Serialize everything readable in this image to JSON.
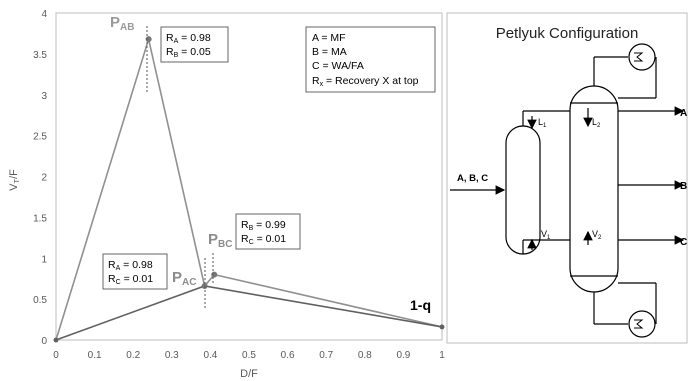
{
  "chart_data": {
    "type": "line",
    "xlabel": "D/F",
    "ylabel_main": "V",
    "ylabel_sub": "T",
    "ylabel_tail": "/F",
    "xlim": [
      0,
      1
    ],
    "ylim": [
      0,
      4
    ],
    "xticks": [
      "0",
      "0.1",
      "0.2",
      "0.3",
      "0.4",
      "0.5",
      "0.6",
      "0.7",
      "0.8",
      "0.9",
      "1"
    ],
    "yticks": [
      "0",
      "0.5",
      "1",
      "1.5",
      "2",
      "2.5",
      "3",
      "3.5",
      "4"
    ],
    "series": [
      {
        "color": "#909090",
        "x": [
          0,
          0.24,
          0.385,
          0.41,
          1
        ],
        "y": [
          0,
          3.68,
          0.66,
          0.8,
          0.16
        ]
      },
      {
        "color": "#606060",
        "x": [
          0,
          0.385,
          1
        ],
        "y": [
          0,
          0.66,
          0.16
        ]
      }
    ],
    "points": [
      {
        "label_main": "P",
        "label_sub": "AB",
        "x": 0.24,
        "y": 3.68
      },
      {
        "label_main": "P",
        "label_sub": "AC",
        "x": 0.385,
        "y": 0.66
      },
      {
        "label_main": "P",
        "label_sub": "BC",
        "x": 0.41,
        "y": 0.8
      }
    ],
    "end_label": "1-q",
    "annotations": [
      {
        "lines": [
          {
            "main": "R",
            "sub": "A",
            "rest": " = 0.98"
          },
          {
            "main": "R",
            "sub": "B",
            "rest": " = 0.05"
          }
        ]
      },
      {
        "lines": [
          {
            "main": "R",
            "sub": "A",
            "rest": " = 0.98"
          },
          {
            "main": "R",
            "sub": "C",
            "rest": " = 0.01"
          }
        ]
      },
      {
        "lines": [
          {
            "main": "R",
            "sub": "B",
            "rest": " = 0.99"
          },
          {
            "main": "R",
            "sub": "C",
            "rest": " = 0.01"
          }
        ]
      }
    ],
    "legend": {
      "items": [
        {
          "main": "A = MF",
          "sub": "",
          "rest": ""
        },
        {
          "main": "B = MA",
          "sub": "",
          "rest": ""
        },
        {
          "main": "C = WA/FA",
          "sub": "",
          "rest": ""
        },
        {
          "main": "R",
          "sub": "x",
          "rest": " = Recovery X at top"
        }
      ]
    }
  },
  "diagram": {
    "title": "Petlyuk Configuration",
    "feed": "A, B, C",
    "out_top": "A",
    "out_mid": "B",
    "out_bot": "C",
    "l1": {
      "main": "L",
      "sub": "1"
    },
    "l2": {
      "main": "L",
      "sub": "2"
    },
    "v1": {
      "main": "V",
      "sub": "1"
    },
    "v2": {
      "main": "V",
      "sub": "2"
    }
  }
}
